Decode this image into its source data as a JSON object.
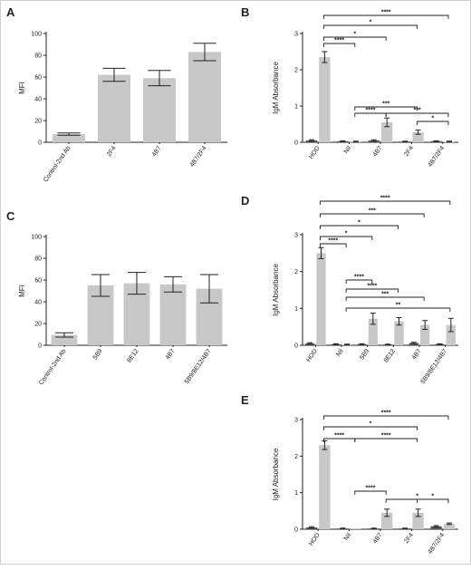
{
  "chart_data": [
    {
      "panel": "A",
      "type": "bar",
      "categories": [
        "Control-2nd Ab",
        "2F4",
        "4B7",
        "4B7/2F4"
      ],
      "series": [
        {
          "values": [
            7.5,
            62,
            59,
            83
          ],
          "errors": [
            1,
            6,
            7,
            8
          ],
          "color": "#c8c8c8"
        }
      ],
      "ylabel": "MFI",
      "ylim": [
        0,
        100
      ],
      "yticks": [
        0,
        20,
        40,
        60,
        80,
        100
      ],
      "comparisons": []
    },
    {
      "panel": "B",
      "type": "bar",
      "categories": [
        "HOD",
        "Nil",
        "4B7",
        "2F4",
        "4B7/2F4"
      ],
      "series": [
        {
          "values": [
            0.05,
            0.03,
            0.05,
            0.02,
            0.03
          ],
          "errors": [
            0.02,
            0.01,
            0.02,
            0.01,
            0.01
          ],
          "color": "#555555"
        },
        {
          "values": [
            2.35,
            0.02,
            0.55,
            0.28,
            0.02
          ],
          "errors": [
            0.15,
            0.01,
            0.12,
            0.06,
            0.01
          ],
          "color": "#c8c8c8"
        }
      ],
      "ylabel": "IgM Absorbance",
      "ylim": [
        0,
        3
      ],
      "yticks": [
        0,
        1,
        2,
        3
      ],
      "comparisons": [
        {
          "from": 0,
          "to": 4,
          "label": "****"
        },
        {
          "from": 0,
          "to": 3,
          "label": "*"
        },
        {
          "from": 0,
          "to": 2,
          "label": "*"
        },
        {
          "from": 0,
          "to": 1,
          "label": "****"
        },
        {
          "from": 1,
          "to": 3,
          "label": "***"
        },
        {
          "from": 1,
          "to": 2,
          "label": "****"
        },
        {
          "from": 2,
          "to": 4,
          "label": "***"
        },
        {
          "from": 3,
          "to": 4,
          "label": "*"
        }
      ]
    },
    {
      "panel": "C",
      "type": "bar",
      "categories": [
        "Control-2nd Ab",
        "5B9",
        "8E12",
        "4B7",
        "5B9/8E12/4B7"
      ],
      "series": [
        {
          "values": [
            9.5,
            55,
            57,
            56,
            52
          ],
          "errors": [
            2,
            10,
            10,
            7,
            13
          ],
          "color": "#c8c8c8"
        }
      ],
      "ylabel": "MFI",
      "ylim": [
        0,
        100
      ],
      "yticks": [
        0,
        20,
        40,
        60,
        80,
        100
      ],
      "comparisons": []
    },
    {
      "panel": "D",
      "type": "bar",
      "categories": [
        "HOD",
        "Nil",
        "5B9",
        "8E12",
        "4B7",
        "5B9/8E12/4B7"
      ],
      "series": [
        {
          "values": [
            0.05,
            0.03,
            0.03,
            0.02,
            0.06,
            0.03
          ],
          "errors": [
            0.02,
            0.01,
            0.01,
            0.01,
            0.02,
            0.01
          ],
          "color": "#555555"
        },
        {
          "values": [
            2.5,
            0.02,
            0.72,
            0.65,
            0.55,
            0.55
          ],
          "errors": [
            0.15,
            0.01,
            0.15,
            0.1,
            0.12,
            0.18
          ],
          "color": "#c8c8c8"
        }
      ],
      "ylabel": "IgM Absorbance",
      "ylim": [
        0,
        3
      ],
      "yticks": [
        0,
        1,
        2,
        3
      ],
      "comparisons": [
        {
          "from": 0,
          "to": 5,
          "label": "****"
        },
        {
          "from": 0,
          "to": 4,
          "label": "***"
        },
        {
          "from": 0,
          "to": 3,
          "label": "*"
        },
        {
          "from": 0,
          "to": 2,
          "label": "*"
        },
        {
          "from": 0,
          "to": 1,
          "label": "****"
        },
        {
          "from": 1,
          "to": 2,
          "label": "****"
        },
        {
          "from": 1,
          "to": 3,
          "label": "****"
        },
        {
          "from": 1,
          "to": 4,
          "label": "***"
        },
        {
          "from": 1,
          "to": 5,
          "label": "**"
        }
      ]
    },
    {
      "panel": "E",
      "type": "bar",
      "categories": [
        "HOD",
        "Nil",
        "4B7",
        "2F4",
        "4B7/2F4"
      ],
      "series": [
        {
          "values": [
            0.05,
            0.02,
            0.02,
            0.02,
            0.08
          ],
          "errors": [
            0.02,
            0.01,
            0.01,
            0.01,
            0.02
          ],
          "color": "#555555"
        },
        {
          "values": [
            2.3,
            0.0,
            0.45,
            0.45,
            0.15
          ],
          "errors": [
            0.12,
            0.0,
            0.1,
            0.1,
            0.02
          ],
          "color": "#c8c8c8"
        }
      ],
      "ylabel": "IgM Absorbance",
      "ylim": [
        0,
        3
      ],
      "yticks": [
        0,
        1,
        2,
        3
      ],
      "comparisons": [
        {
          "from": 0,
          "to": 4,
          "label": "****"
        },
        {
          "from": 0,
          "to": 3,
          "label": "*"
        },
        {
          "from": 0,
          "to": 1,
          "label": "****"
        },
        {
          "from": 1,
          "to": 3,
          "label": "****"
        },
        {
          "from": 1,
          "to": 2,
          "label": "****"
        },
        {
          "from": 2,
          "to": 4,
          "label": "*"
        },
        {
          "from": 3,
          "to": 4,
          "label": "*"
        }
      ]
    }
  ]
}
